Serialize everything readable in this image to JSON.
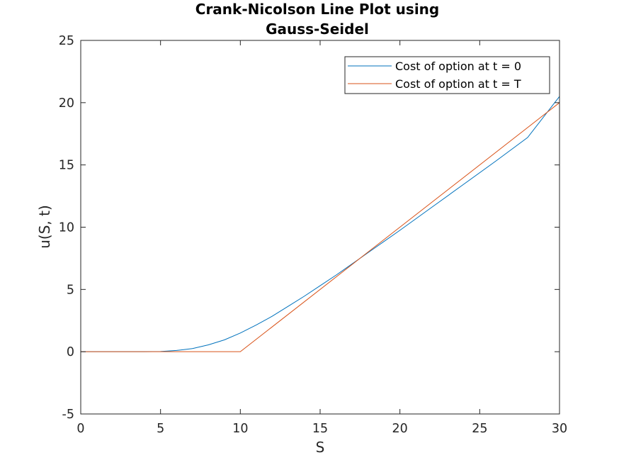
{
  "chart_data": {
    "type": "line",
    "title_lines": [
      "Crank-Nicolson Line Plot using",
      "Gauss-Seidel"
    ],
    "xlabel": "S",
    "ylabel": "u(S, t)",
    "xlim": [
      0,
      30
    ],
    "ylim": [
      -5,
      25
    ],
    "xticks": [
      0,
      5,
      10,
      15,
      20,
      25,
      30
    ],
    "yticks": [
      -5,
      0,
      5,
      10,
      15,
      20,
      25
    ],
    "xtick_labels": [
      "0",
      "5",
      "10",
      "15",
      "20",
      "25",
      "30"
    ],
    "ytick_labels": [
      "-5",
      "0",
      "5",
      "10",
      "15",
      "20",
      "25"
    ],
    "grid": false,
    "legend_position": "top-right",
    "series": [
      {
        "name": "Cost of option at t = 0",
        "color": "#0072BD",
        "x": [
          0,
          4,
          5,
          6,
          7,
          8,
          9,
          10,
          11,
          12,
          13,
          14,
          15,
          16,
          17,
          18,
          19,
          20,
          22,
          24,
          26,
          28,
          30
        ],
        "y": [
          0,
          0,
          0.02,
          0.1,
          0.25,
          0.55,
          0.95,
          1.5,
          2.15,
          2.85,
          3.65,
          4.45,
          5.3,
          6.15,
          7.05,
          7.95,
          8.85,
          9.75,
          11.6,
          13.45,
          15.3,
          17.2,
          20.5
        ]
      },
      {
        "name": "Cost of option at t = T",
        "color": "#D95319",
        "x": [
          0,
          10,
          30
        ],
        "y": [
          0,
          0,
          20
        ]
      }
    ]
  }
}
